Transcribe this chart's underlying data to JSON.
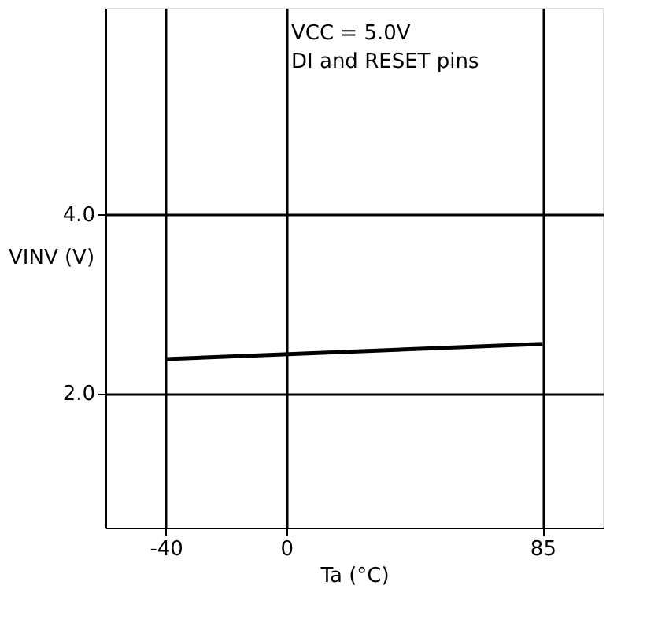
{
  "chart_data": {
    "type": "line",
    "x": [
      -40,
      85
    ],
    "values": [
      2.38,
      2.55
    ],
    "color": "#000000",
    "xlim": [
      -60,
      105
    ],
    "ylim": [
      0.5,
      6.3
    ],
    "xticks": [
      -40,
      0,
      85
    ],
    "yticks": [
      {
        "value": 2,
        "label": "2.0"
      },
      {
        "value": 4,
        "label": "4.0"
      }
    ],
    "xlabel": "Ta (°C)",
    "ylabel": "VINV (V)",
    "grid": true,
    "marker": "none",
    "line_style": "solid",
    "annotations": [
      "VCC = 5.0V",
      "DI and RESET pins"
    ]
  }
}
